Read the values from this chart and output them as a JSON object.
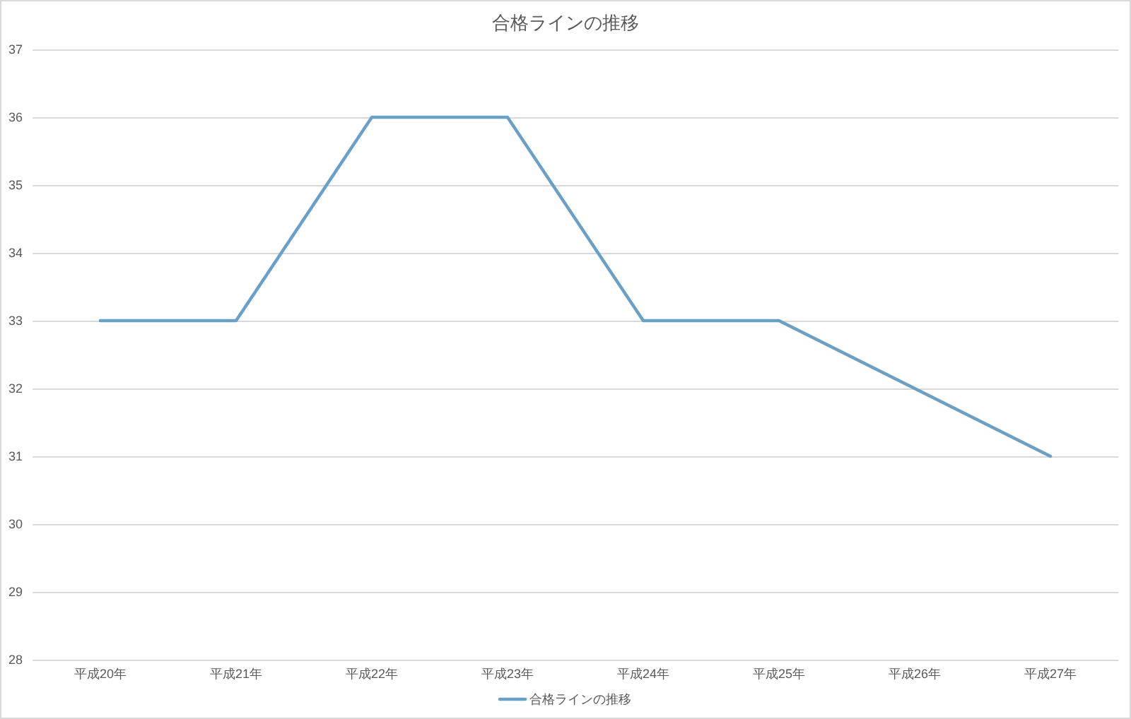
{
  "chart_data": {
    "type": "line",
    "title": "合格ラインの推移",
    "categories": [
      "平成20年",
      "平成21年",
      "平成22年",
      "平成23年",
      "平成24年",
      "平成25年",
      "平成26年",
      "平成27年"
    ],
    "series": [
      {
        "name": "合格ラインの推移",
        "color": "#6a9fc6",
        "values": [
          33,
          33,
          36,
          36,
          33,
          33,
          32,
          31
        ]
      }
    ],
    "ylim": [
      28,
      37
    ],
    "yticks": [
      28,
      29,
      30,
      31,
      32,
      33,
      34,
      35,
      36,
      37
    ],
    "grid": "y",
    "legend": "bottom"
  }
}
